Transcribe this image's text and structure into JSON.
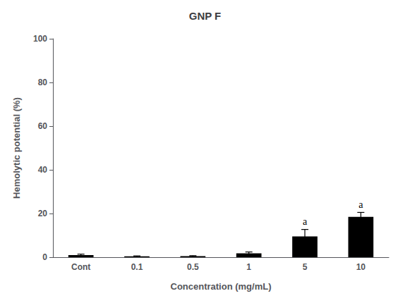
{
  "chart_data": {
    "type": "bar",
    "title": "GNP F",
    "xlabel": "Concentration (mg/mL)",
    "ylabel": "Hemolytic potential (%)",
    "categories": [
      "Cont",
      "0.1",
      "0.5",
      "1",
      "5",
      "10"
    ],
    "values": [
      1.0,
      0.4,
      0.5,
      1.8,
      9.5,
      18.5
    ],
    "errors": [
      0.4,
      0.2,
      0.2,
      0.6,
      3.2,
      2.0
    ],
    "color": "#000000",
    "ylim": [
      0,
      100
    ],
    "yticks": [
      0,
      20,
      40,
      60,
      80,
      100
    ],
    "grid": false,
    "annotations": [
      {
        "text": "a",
        "category": "5"
      },
      {
        "text": "a",
        "category": "10"
      }
    ]
  }
}
